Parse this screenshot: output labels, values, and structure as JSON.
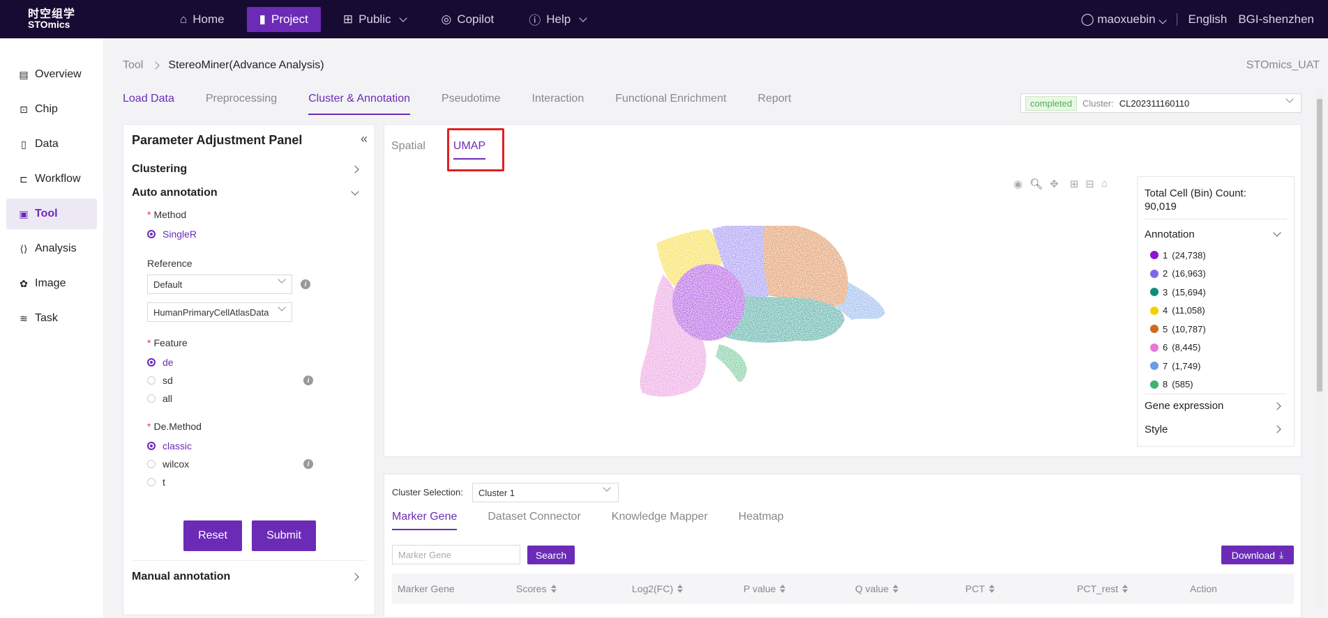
{
  "header": {
    "logo_line1": "时空组学",
    "logo_line2": "STOmics",
    "nav": [
      {
        "label": "Home",
        "icon": "home-icon"
      },
      {
        "label": "Project",
        "icon": "file-icon"
      },
      {
        "label": "Public",
        "icon": "grid-icon"
      },
      {
        "label": "Copilot",
        "icon": "globe-icon"
      },
      {
        "label": "Help",
        "icon": "help-icon"
      }
    ],
    "user": "maoxuebin",
    "language": "English",
    "org": "BGI-shenzhen"
  },
  "sidebar": {
    "items": [
      {
        "label": "Overview"
      },
      {
        "label": "Chip"
      },
      {
        "label": "Data"
      },
      {
        "label": "Workflow"
      },
      {
        "label": "Tool"
      },
      {
        "label": "Analysis"
      },
      {
        "label": "Image"
      },
      {
        "label": "Task"
      }
    ]
  },
  "breadcrumb": {
    "root": "Tool",
    "current": "StereoMiner(Advance Analysis)"
  },
  "env": "STOmics_UAT",
  "tabs": [
    "Load Data",
    "Preprocessing",
    "Cluster & Annotation",
    "Pseudotime",
    "Interaction",
    "Functional Enrichment",
    "Report"
  ],
  "cluster_status": {
    "badge": "completed",
    "label": "Cluster:",
    "value": "CL202311160110"
  },
  "panel": {
    "title": "Parameter Adjustment Panel",
    "clustering": "Clustering",
    "auto_annotation": "Auto annotation",
    "method_label": "Method",
    "method_option": "SingleR",
    "reference_label": "Reference",
    "reference_select1": "Default",
    "reference_select2": "HumanPrimaryCellAtlasData",
    "feature_label": "Feature",
    "feature_options": [
      "de",
      "sd",
      "all"
    ],
    "demethod_label": "De.Method",
    "demethod_options": [
      "classic",
      "wilcox",
      "t"
    ],
    "reset": "Reset",
    "submit": "Submit",
    "manual_annotation": "Manual annotation"
  },
  "view": {
    "tabs": [
      "Spatial",
      "UMAP"
    ]
  },
  "legend": {
    "total_label": "Total Cell (Bin) Count:",
    "total_value": "90,019",
    "annotation": "Annotation",
    "entries": [
      {
        "label": "1",
        "count": "(24,738)",
        "color": "#8e12d6"
      },
      {
        "label": "2",
        "count": "(16,963)",
        "color": "#7b68ee"
      },
      {
        "label": "3",
        "count": "(15,694)",
        "color": "#0f8a7d"
      },
      {
        "label": "4",
        "count": "(11,058)",
        "color": "#f5d000"
      },
      {
        "label": "5",
        "count": "(10,787)",
        "color": "#d2691e"
      },
      {
        "label": "6",
        "count": "(8,445)",
        "color": "#e57ad6"
      },
      {
        "label": "7",
        "count": "(1,749)",
        "color": "#6b9ae6"
      },
      {
        "label": "8",
        "count": "(585)",
        "color": "#3cb371"
      }
    ],
    "gene_expression": "Gene expression",
    "style": "Style"
  },
  "bottom": {
    "cluster_selection_label": "Cluster Selection:",
    "cluster_selection_value": "Cluster 1",
    "tabs": [
      "Marker Gene",
      "Dataset Connector",
      "Knowledge Mapper",
      "Heatmap"
    ],
    "search_placeholder": "Marker Gene",
    "search_btn": "Search",
    "download": "Download",
    "columns": [
      "Marker Gene",
      "Scores",
      "Log2(FC)",
      "P value",
      "Q value",
      "PCT",
      "PCT_rest",
      "Action"
    ]
  }
}
